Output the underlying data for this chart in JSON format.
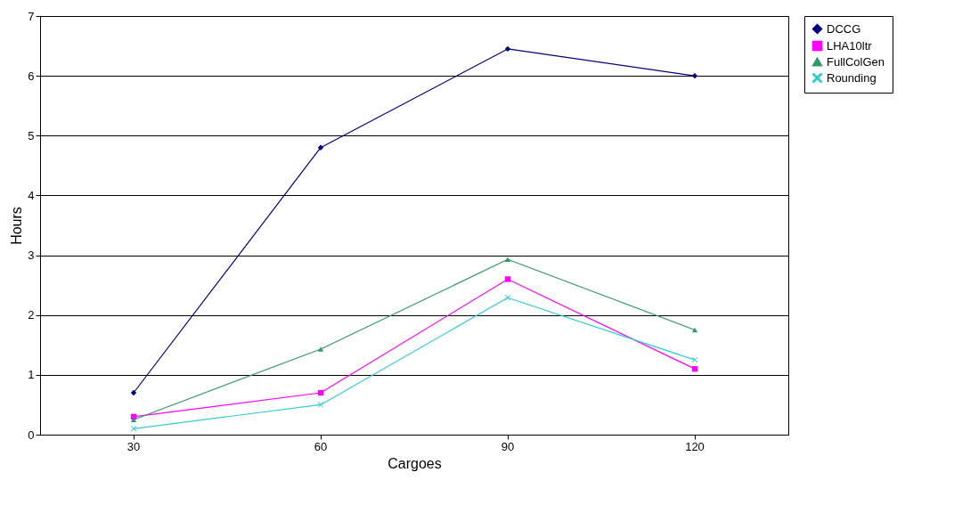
{
  "chart_data": {
    "type": "line",
    "xlabel": "Cargoes",
    "ylabel": "Hours",
    "categories": [
      "30",
      "60",
      "90",
      "120"
    ],
    "series": [
      {
        "name": "DCCG",
        "color": "#000080",
        "marker": "diamond",
        "values": [
          0.7,
          4.8,
          6.45,
          6.0
        ]
      },
      {
        "name": "LHA10ltr",
        "color": "#ff00ff",
        "marker": "square",
        "values": [
          0.3,
          0.7,
          2.6,
          1.1
        ]
      },
      {
        "name": "FullColGen",
        "color": "#339966",
        "marker": "triangle",
        "values": [
          0.25,
          1.43,
          2.93,
          1.75
        ]
      },
      {
        "name": "Rounding",
        "color": "#33cccc",
        "marker": "cross",
        "values": [
          0.1,
          0.5,
          2.29,
          1.25
        ]
      }
    ],
    "ylim": [
      0,
      7
    ],
    "yticks": [
      0,
      1,
      2,
      3,
      4,
      5,
      6,
      7
    ],
    "grid": "y",
    "legend": "right"
  }
}
